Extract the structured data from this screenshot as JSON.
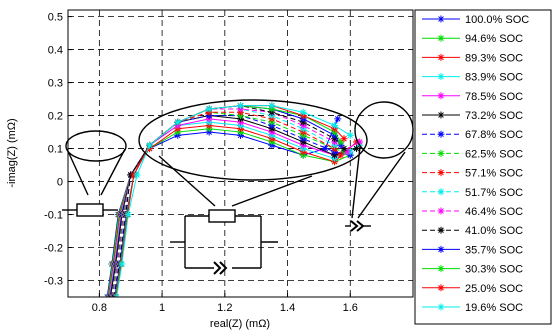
{
  "chart_data": {
    "type": "line",
    "title": "",
    "xlabel": "real(Z) (mΩ)",
    "ylabel": "-imag(Z) (mΩ)",
    "xlim": [
      0.7,
      1.8
    ],
    "ylim": [
      -0.35,
      0.52
    ],
    "xticks": [
      0.8,
      1,
      1.2,
      1.4,
      1.6
    ],
    "xtick_labels": [
      "0.8",
      "1",
      "1.2",
      "1.4",
      "1.6"
    ],
    "yticks": [
      -0.3,
      -0.2,
      -0.1,
      0,
      0.1,
      0.2,
      0.3,
      0.4,
      0.5
    ],
    "ytick_labels": [
      "-0.3",
      "-0.2",
      "-0.1",
      "0",
      "0.1",
      "0.2",
      "0.3",
      "0.4",
      "0.5"
    ],
    "grid": true,
    "legend_position": "right",
    "series": [
      {
        "name": "100.0% SOC",
        "color": "#0000ff",
        "linestyle": "solid",
        "x": [
          0.825,
          0.84,
          0.86,
          0.9,
          0.96,
          1.05,
          1.15,
          1.25,
          1.35,
          1.45,
          1.52,
          1.56
        ],
        "y": [
          -0.35,
          -0.25,
          -0.1,
          0.02,
          0.1,
          0.14,
          0.15,
          0.14,
          0.11,
          0.08,
          0.1,
          0.19
        ]
      },
      {
        "name": "94.6% SOC",
        "color": "#00dd00",
        "linestyle": "solid",
        "x": [
          0.827,
          0.842,
          0.862,
          0.9,
          0.96,
          1.05,
          1.15,
          1.25,
          1.35,
          1.45,
          1.55,
          1.6
        ],
        "y": [
          -0.35,
          -0.25,
          -0.1,
          0.02,
          0.1,
          0.15,
          0.16,
          0.15,
          0.12,
          0.08,
          0.06,
          0.08
        ]
      },
      {
        "name": "89.3% SOC",
        "color": "#ff0000",
        "linestyle": "solid",
        "x": [
          0.829,
          0.845,
          0.865,
          0.9,
          0.96,
          1.05,
          1.15,
          1.25,
          1.35,
          1.45,
          1.55,
          1.62
        ],
        "y": [
          -0.35,
          -0.25,
          -0.1,
          0.02,
          0.1,
          0.16,
          0.17,
          0.16,
          0.13,
          0.09,
          0.06,
          0.12
        ]
      },
      {
        "name": "83.9% SOC",
        "color": "#00eeee",
        "linestyle": "solid",
        "x": [
          0.831,
          0.848,
          0.868,
          0.9,
          0.96,
          1.05,
          1.15,
          1.25,
          1.35,
          1.45,
          1.55,
          1.63
        ],
        "y": [
          -0.35,
          -0.25,
          -0.1,
          0.02,
          0.11,
          0.17,
          0.18,
          0.17,
          0.14,
          0.1,
          0.07,
          0.11
        ]
      },
      {
        "name": "78.5% SOC",
        "color": "#ff00ff",
        "linestyle": "solid",
        "x": [
          0.833,
          0.85,
          0.87,
          0.9,
          0.96,
          1.05,
          1.15,
          1.25,
          1.35,
          1.45,
          1.55,
          1.63
        ],
        "y": [
          -0.35,
          -0.25,
          -0.1,
          0.02,
          0.11,
          0.17,
          0.19,
          0.18,
          0.15,
          0.11,
          0.08,
          0.12
        ]
      },
      {
        "name": "73.2% SOC",
        "color": "#000000",
        "linestyle": "solid",
        "x": [
          0.835,
          0.852,
          0.872,
          0.9,
          0.96,
          1.05,
          1.15,
          1.25,
          1.35,
          1.45,
          1.55,
          1.62
        ],
        "y": [
          -0.35,
          -0.25,
          -0.1,
          0.02,
          0.11,
          0.18,
          0.2,
          0.19,
          0.16,
          0.12,
          0.08,
          0.1
        ]
      },
      {
        "name": "67.8% SOC",
        "color": "#0000ff",
        "linestyle": "dashed",
        "x": [
          0.837,
          0.854,
          0.874,
          0.9,
          0.96,
          1.05,
          1.15,
          1.25,
          1.35,
          1.45,
          1.55,
          1.6
        ],
        "y": [
          -0.35,
          -0.25,
          -0.1,
          0.02,
          0.11,
          0.18,
          0.2,
          0.2,
          0.17,
          0.13,
          0.09,
          0.08
        ]
      },
      {
        "name": "62.5% SOC",
        "color": "#00dd00",
        "linestyle": "dashed",
        "x": [
          0.839,
          0.856,
          0.876,
          0.9,
          0.96,
          1.05,
          1.15,
          1.25,
          1.35,
          1.45,
          1.55,
          1.58
        ],
        "y": [
          -0.35,
          -0.25,
          -0.1,
          0.02,
          0.11,
          0.18,
          0.21,
          0.2,
          0.18,
          0.14,
          0.1,
          0.09
        ]
      },
      {
        "name": "57.1% SOC",
        "color": "#ff0000",
        "linestyle": "dashed",
        "x": [
          0.841,
          0.858,
          0.878,
          0.9,
          0.96,
          1.05,
          1.15,
          1.25,
          1.35,
          1.45,
          1.55,
          1.57
        ],
        "y": [
          -0.35,
          -0.25,
          -0.1,
          0.02,
          0.11,
          0.18,
          0.21,
          0.21,
          0.19,
          0.15,
          0.1,
          0.08
        ]
      },
      {
        "name": "51.7% SOC",
        "color": "#00eeee",
        "linestyle": "dashed",
        "x": [
          0.843,
          0.86,
          0.88,
          0.9,
          0.96,
          1.05,
          1.15,
          1.25,
          1.35,
          1.45,
          1.55,
          1.6
        ],
        "y": [
          -0.35,
          -0.25,
          -0.1,
          0.02,
          0.11,
          0.18,
          0.22,
          0.22,
          0.2,
          0.16,
          0.11,
          0.09
        ]
      },
      {
        "name": "46.4% SOC",
        "color": "#ff00ff",
        "linestyle": "dashed",
        "x": [
          0.845,
          0.862,
          0.882,
          0.9,
          0.96,
          1.05,
          1.15,
          1.25,
          1.35,
          1.45,
          1.55,
          1.59
        ],
        "y": [
          -0.35,
          -0.25,
          -0.1,
          0.02,
          0.11,
          0.18,
          0.22,
          0.22,
          0.21,
          0.17,
          0.12,
          0.09
        ]
      },
      {
        "name": "41.0% SOC",
        "color": "#000000",
        "linestyle": "dashed",
        "x": [
          0.847,
          0.864,
          0.884,
          0.9,
          0.96,
          1.05,
          1.15,
          1.25,
          1.35,
          1.45,
          1.55,
          1.58
        ],
        "y": [
          -0.35,
          -0.25,
          -0.1,
          0.02,
          0.11,
          0.18,
          0.22,
          0.23,
          0.21,
          0.18,
          0.13,
          0.1
        ]
      },
      {
        "name": "35.7% SOC",
        "color": "#0000ff",
        "linestyle": "solid",
        "x": [
          0.849,
          0.866,
          0.886,
          0.91,
          0.96,
          1.05,
          1.15,
          1.25,
          1.35,
          1.45,
          1.55,
          1.57
        ],
        "y": [
          -0.35,
          -0.25,
          -0.1,
          0.02,
          0.11,
          0.18,
          0.22,
          0.23,
          0.22,
          0.19,
          0.14,
          0.11
        ]
      },
      {
        "name": "30.3% SOC",
        "color": "#00dd00",
        "linestyle": "solid",
        "x": [
          0.851,
          0.868,
          0.888,
          0.91,
          0.96,
          1.05,
          1.15,
          1.25,
          1.35,
          1.45,
          1.55,
          1.57
        ],
        "y": [
          -0.35,
          -0.25,
          -0.1,
          0.02,
          0.11,
          0.18,
          0.22,
          0.23,
          0.22,
          0.2,
          0.15,
          0.12
        ]
      },
      {
        "name": "25.0% SOC",
        "color": "#ff0000",
        "linestyle": "solid",
        "x": [
          0.853,
          0.87,
          0.89,
          0.91,
          0.96,
          1.05,
          1.15,
          1.25,
          1.35,
          1.45,
          1.55,
          1.58
        ],
        "y": [
          -0.35,
          -0.25,
          -0.1,
          0.02,
          0.11,
          0.18,
          0.22,
          0.23,
          0.23,
          0.2,
          0.16,
          0.13
        ]
      },
      {
        "name": "19.6% SOC",
        "color": "#00eeee",
        "linestyle": "solid",
        "x": [
          0.855,
          0.872,
          0.892,
          0.92,
          0.96,
          1.05,
          1.15,
          1.25,
          1.35,
          1.45,
          1.55,
          1.6
        ],
        "y": [
          -0.35,
          -0.25,
          -0.1,
          0.02,
          0.11,
          0.18,
          0.22,
          0.23,
          0.23,
          0.21,
          0.17,
          0.14
        ]
      }
    ]
  }
}
